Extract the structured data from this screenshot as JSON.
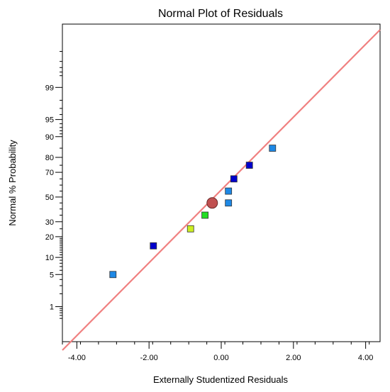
{
  "chart_data": {
    "type": "scatter",
    "title": "Normal Plot of Residuals",
    "xlabel": "Externally Studentized Residuals",
    "ylabel": "Normal % Probability",
    "xlim": [
      -4.4,
      4.4
    ],
    "ylim_z": [
      -3.07,
      3.67
    ],
    "y_scale": "normal-probability",
    "x_ticks": [
      -4,
      -2,
      0,
      2,
      4
    ],
    "x_tick_labels": [
      "-4.00",
      "-2.00",
      "0.00",
      "2.00",
      "4.00"
    ],
    "y_ticks": [
      1,
      5,
      10,
      20,
      30,
      50,
      70,
      80,
      90,
      95,
      99
    ],
    "y_tick_labels": [
      "1",
      "5",
      "10",
      "20",
      "30",
      "50",
      "70",
      "80",
      "90",
      "95",
      "99"
    ],
    "y_minor_ticks": [
      0.5,
      0.6,
      0.7,
      0.8,
      0.9,
      2,
      3,
      4,
      6,
      7,
      8,
      9,
      11,
      12,
      13,
      14,
      15,
      16,
      17,
      18,
      19,
      25,
      35,
      40,
      45,
      55,
      60,
      65,
      75,
      85,
      91,
      92,
      93,
      94,
      96,
      97,
      98,
      99.5,
      99.6,
      99.7,
      99.8,
      99.9
    ],
    "reference_line": {
      "x": [
        -4.4,
        4.4
      ],
      "y_z": [
        -3.25,
        3.55
      ],
      "color": "#f08080"
    },
    "points": [
      {
        "x": -3.0,
        "p": 5,
        "color": "#1e88e5",
        "shape": "square"
      },
      {
        "x": -1.88,
        "p": 15,
        "color": "#0000cc",
        "shape": "square"
      },
      {
        "x": -0.85,
        "p": 25,
        "color": "#ccee22",
        "shape": "square"
      },
      {
        "x": -0.45,
        "p": 35,
        "color": "#22dd22",
        "shape": "square"
      },
      {
        "x": -0.25,
        "p": 45,
        "color": "#c05050",
        "shape": "circle"
      },
      {
        "x": 0.2,
        "p": 45,
        "color": "#1e88e5",
        "shape": "square"
      },
      {
        "x": 0.2,
        "p": 55,
        "color": "#1e88e5",
        "shape": "square"
      },
      {
        "x": 0.35,
        "p": 65,
        "color": "#0000cc",
        "shape": "square"
      },
      {
        "x": 0.78,
        "p": 75,
        "color": "#0000cc",
        "shape": "square"
      },
      {
        "x": 1.42,
        "p": 85,
        "color": "#1e88e5",
        "shape": "square"
      }
    ]
  }
}
